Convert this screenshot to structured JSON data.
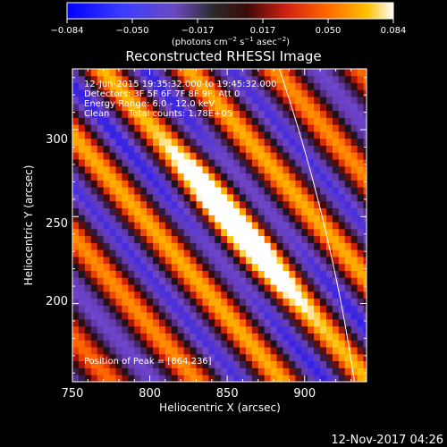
{
  "chart_data": {
    "type": "heatmap",
    "title": "Reconstructed RHESSI Image",
    "xlabel": "Heliocentric X (arcsec)",
    "ylabel": "Heliocentric Y (arcsec)",
    "xlim": [
      750,
      940
    ],
    "ylim": [
      155,
      335
    ],
    "x_ticks": [
      750,
      800,
      850,
      900
    ],
    "y_ticks": [
      200,
      250,
      300
    ],
    "colorbar": {
      "min": -0.084,
      "max": 0.084,
      "ticks": [
        "−0.084",
        "−0.050",
        "−0.017",
        "0.017",
        "0.050",
        "0.084"
      ],
      "unit_prefix": "(photons cm",
      "unit_exp1": "−2",
      "unit_mid1": " s",
      "unit_exp2": "−1",
      "unit_mid2": " asec",
      "unit_exp3": "−2",
      "unit_suffix": ")"
    },
    "annotations": {
      "time": "12-Jun-2015 19:35:32.000 to 19:45:32.000",
      "detectors": "Detectors: 3F 5F 6F 7F 8F 9F, Att 0",
      "energy": "Energy Range: 6.0 - 12.0 keV",
      "clean": "Clean",
      "counts": "Total counts: 1.78E+05",
      "peak": "Position of Peak = [864,236]"
    },
    "peak": [
      864,
      236
    ],
    "secondary_peak": [
      838,
      270
    ],
    "colormap_stops": [
      "#0000ff",
      "#7a45c0",
      "#5a2f8c",
      "#202020",
      "#c01818",
      "#ff5a00",
      "#ffb000",
      "#ffffff"
    ],
    "limb_color": "#ffffff"
  },
  "footer": {
    "date": "12-Nov-2017 04:26"
  }
}
